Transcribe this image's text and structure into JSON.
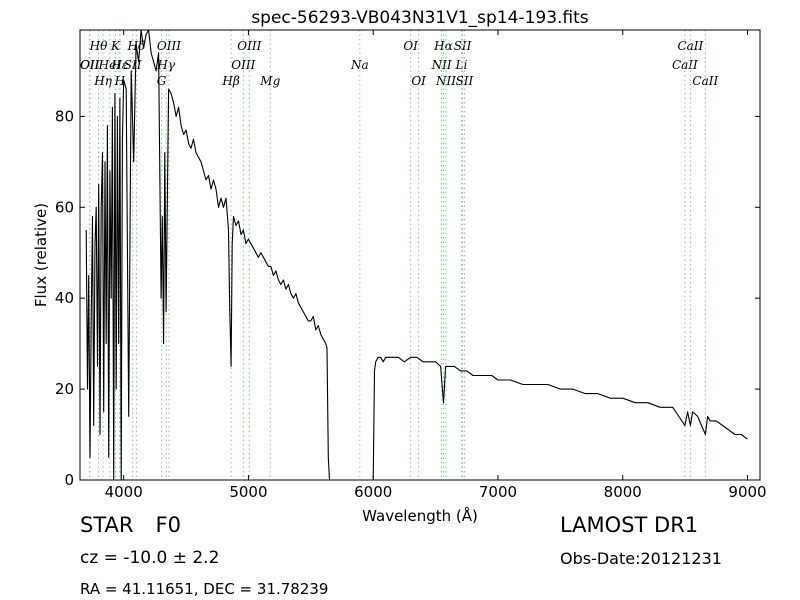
{
  "chart_data": {
    "type": "line",
    "title": "spec-56293-VB043N31V1_sp14-193.fits",
    "xlabel": "Wavelength (Å)",
    "ylabel": "Flux (relative)",
    "xlim": [
      3650,
      9100
    ],
    "ylim": [
      0,
      99
    ],
    "xticks": [
      4000,
      5000,
      6000,
      7000,
      8000,
      9000
    ],
    "yticks": [
      0,
      20,
      40,
      60,
      80
    ],
    "grid": false,
    "series": [
      {
        "color": "#000000",
        "x": [
          3700,
          3710,
          3720,
          3730,
          3740,
          3750,
          3760,
          3770,
          3780,
          3790,
          3800,
          3810,
          3820,
          3830,
          3840,
          3850,
          3860,
          3870,
          3880,
          3890,
          3900,
          3910,
          3920,
          3930,
          3940,
          3950,
          3960,
          3970,
          3980,
          3990,
          4000,
          4020,
          4040,
          4060,
          4080,
          4100,
          4120,
          4140,
          4160,
          4180,
          4200,
          4220,
          4240,
          4260,
          4280,
          4300,
          4310,
          4320,
          4330,
          4340,
          4360,
          4380,
          4400,
          4420,
          4440,
          4460,
          4480,
          4500,
          4520,
          4540,
          4560,
          4580,
          4600,
          4620,
          4640,
          4660,
          4680,
          4700,
          4720,
          4740,
          4760,
          4780,
          4800,
          4820,
          4840,
          4850,
          4861,
          4870,
          4880,
          4900,
          4920,
          4940,
          4960,
          4980,
          5000,
          5020,
          5040,
          5060,
          5080,
          5100,
          5120,
          5140,
          5160,
          5180,
          5200,
          5220,
          5240,
          5260,
          5280,
          5300,
          5320,
          5340,
          5360,
          5380,
          5400,
          5420,
          5440,
          5460,
          5480,
          5500,
          5520,
          5540,
          5560,
          5580,
          5600,
          5620,
          5630,
          5640,
          5650,
          5700,
          5800,
          5900,
          6000,
          6010,
          6020,
          6040,
          6060,
          6080,
          6100,
          6150,
          6200,
          6250,
          6300,
          6350,
          6400,
          6450,
          6500,
          6540,
          6563,
          6580,
          6600,
          6650,
          6700,
          6750,
          6800,
          6850,
          6900,
          6950,
          7000,
          7100,
          7200,
          7300,
          7400,
          7500,
          7600,
          7700,
          7800,
          7900,
          8000,
          8100,
          8200,
          8300,
          8400,
          8450,
          8498,
          8520,
          8542,
          8560,
          8600,
          8662,
          8680,
          8700,
          8750,
          8800,
          8850,
          8900,
          8950,
          9000
        ],
        "y": [
          55,
          20,
          45,
          5,
          35,
          58,
          12,
          52,
          60,
          25,
          65,
          10,
          60,
          72,
          15,
          70,
          30,
          78,
          5,
          68,
          40,
          82,
          0,
          85,
          20,
          80,
          30,
          84,
          0,
          75,
          88,
          86,
          14,
          90,
          70,
          96,
          92,
          99,
          95,
          98,
          99,
          94,
          92,
          90,
          94,
          40,
          58,
          30,
          72,
          37,
          86,
          85,
          83,
          80,
          82,
          78,
          76,
          77,
          74,
          73,
          75,
          72,
          71,
          70,
          68,
          66,
          67,
          64,
          66,
          64,
          60,
          62,
          60,
          62,
          55,
          38,
          25,
          52,
          58,
          56,
          57,
          54,
          55,
          52,
          53,
          52,
          51,
          50,
          49,
          50,
          49,
          48,
          47,
          47,
          45,
          46,
          44,
          43,
          44,
          42,
          43,
          41,
          40,
          41,
          39,
          38,
          37,
          36,
          35,
          35,
          36,
          33,
          34,
          32,
          31,
          30,
          29,
          5,
          0,
          0,
          0,
          0,
          0,
          24,
          26,
          27,
          27,
          26,
          27,
          27,
          27,
          26,
          27,
          27,
          26,
          26,
          26,
          25,
          17,
          25,
          25,
          25,
          24,
          24,
          23,
          23,
          23,
          23,
          22,
          22,
          21,
          21,
          21,
          20,
          20,
          19,
          19,
          18,
          18,
          17,
          17,
          16,
          16,
          14,
          12,
          15,
          12,
          15,
          14,
          10,
          14,
          13,
          13,
          12,
          11,
          10,
          10,
          9
        ]
      }
    ],
    "line_marks": [
      {
        "wl": 3727,
        "row": 2,
        "text": "OII"
      },
      {
        "wl": 3729,
        "row": 3,
        "text": "OII"
      },
      {
        "wl": 3798,
        "row": 1,
        "text": "Hθ"
      },
      {
        "wl": 3835,
        "row": 4,
        "text": "Hη"
      },
      {
        "wl": 3889,
        "row": 2,
        "text": "HeI"
      },
      {
        "wl": 3934,
        "row": 1,
        "text": "K"
      },
      {
        "wl": 3969,
        "row": 4,
        "text": "H"
      },
      {
        "wl": 3970,
        "row": 3,
        "text": "Hε"
      },
      {
        "wl": 4072,
        "row": 2,
        "text": "SII"
      },
      {
        "wl": 4102,
        "row": 1,
        "text": "Hδ"
      },
      {
        "wl": 4304,
        "row": 4,
        "text": "G"
      },
      {
        "wl": 4341,
        "row": 2,
        "text": "Hγ"
      },
      {
        "wl": 4363,
        "row": 1,
        "text": "OIII"
      },
      {
        "wl": 4861,
        "row": 4,
        "text": "Hβ"
      },
      {
        "wl": 4959,
        "row": 2,
        "text": "OIII"
      },
      {
        "wl": 5007,
        "row": 1,
        "text": "OIII"
      },
      {
        "wl": 5175,
        "row": 4,
        "text": "Mg"
      },
      {
        "wl": 5893,
        "row": 3,
        "text": "Na"
      },
      {
        "wl": 6300,
        "row": 1,
        "text": "OI"
      },
      {
        "wl": 6364,
        "row": 4,
        "text": "OI"
      },
      {
        "wl": 6548,
        "row": 3,
        "text": "NII"
      },
      {
        "wl": 6563,
        "row": 1,
        "text": "Hα"
      },
      {
        "wl": 6583,
        "row": 4,
        "text": "NII"
      },
      {
        "wl": 6707,
        "row": 3,
        "text": "Li"
      },
      {
        "wl": 6716,
        "row": 1,
        "text": "SII"
      },
      {
        "wl": 6731,
        "row": 4,
        "text": "SII"
      },
      {
        "wl": 8498,
        "row": 3,
        "text": "CaII"
      },
      {
        "wl": 8542,
        "row": 1,
        "text": "CaII"
      },
      {
        "wl": 8662,
        "row": 4,
        "text": "CaII"
      }
    ]
  },
  "info": {
    "object_class": "STAR",
    "subclass": "F0",
    "redshift_text": "cz = -10.0 ± 2.2",
    "coords_text": "RA = 41.11651, DEC = 31.78239",
    "survey": "LAMOST DR1",
    "obs_date": "Obs-Date:20121231"
  }
}
